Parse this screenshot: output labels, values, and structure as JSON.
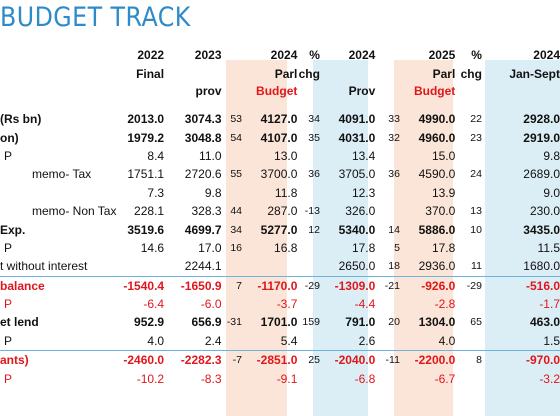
{
  "title": "BUDGET TRACK",
  "colors": {
    "title": "#2e8bc8",
    "red": "#e0161b",
    "peach": "#fbe5d8",
    "blue": "#dbeef6"
  },
  "header": {
    "years": [
      "2022",
      "2023",
      "",
      "2024",
      "%",
      "2024",
      "",
      "2025",
      "%",
      "2024"
    ],
    "line2": [
      "Final",
      "",
      "",
      "Parl",
      "chg",
      "",
      "",
      "Parl",
      "chg",
      "Jan-Sept"
    ],
    "line3": [
      "",
      "prov",
      "",
      "Budget",
      "",
      "Prov",
      "",
      "Budget",
      "",
      ""
    ]
  },
  "rows": [
    {
      "label": "(Rs bn)",
      "vals": [
        "2013.0",
        "3074.3",
        "53",
        "4127.0",
        "34",
        "4091.0",
        "33",
        "4990.0",
        "22",
        "2928.0"
      ]
    },
    {
      "label": "on)",
      "vals": [
        "1979.2",
        "3048.8",
        "54",
        "4107.0",
        "35",
        "4031.0",
        "32",
        "4960.0",
        "23",
        "2919.0"
      ]
    },
    {
      "label": "P",
      "vals": [
        "8.4",
        "11.0",
        "",
        "13.0",
        "",
        "13.4",
        "",
        "15.0",
        "",
        "9.8"
      ]
    },
    {
      "label": "memo- Tax",
      "vals": [
        "1751.1",
        "2720.6",
        "55",
        "3700.0",
        "36",
        "3705.0",
        "36",
        "4590.0",
        "24",
        "2689.0"
      ]
    },
    {
      "label": "",
      "vals": [
        "7.3",
        "9.8",
        "",
        "11.8",
        "",
        "12.3",
        "",
        "13.9",
        "",
        "9.0"
      ]
    },
    {
      "label": "memo- Non Tax",
      "vals": [
        "228.1",
        "328.3",
        "44",
        "287.0",
        "-13",
        "326.0",
        "",
        "370.0",
        "13",
        "230.0"
      ]
    },
    {
      "label": "Exp.",
      "vals": [
        "3519.6",
        "4699.7",
        "34",
        "5277.0",
        "12",
        "5340.0",
        "14",
        "5886.0",
        "10",
        "3435.0"
      ]
    },
    {
      "label": "P",
      "vals": [
        "14.6",
        "17.0",
        "16",
        "16.8",
        "",
        "17.8",
        "5",
        "17.8",
        "",
        "11.5"
      ]
    },
    {
      "label": "t without interest",
      "vals": [
        "",
        "2244.1",
        "",
        "",
        "",
        "2650.0",
        "18",
        "2936.0",
        "11",
        "1680.0"
      ]
    },
    {
      "label": "balance",
      "vals": [
        "-1540.4",
        "-1650.9",
        "7",
        "-1170.0",
        "-29",
        "-1309.0",
        "-21",
        "-926.0",
        "-29",
        "-516.0"
      ]
    },
    {
      "label": "P",
      "vals": [
        "-6.4",
        "-6.0",
        "",
        "-3.7",
        "",
        "-4.4",
        "",
        "-2.8",
        "",
        "-1.7"
      ]
    },
    {
      "label": "et lend",
      "vals": [
        "952.9",
        "656.9",
        "-31",
        "1701.0",
        "159",
        "791.0",
        "20",
        "1304.0",
        "65",
        "463.0"
      ]
    },
    {
      "label": "P",
      "vals": [
        "4.0",
        "2.4",
        "",
        "5.4",
        "",
        "2.6",
        "",
        "4.0",
        "",
        "1.5"
      ]
    },
    {
      "label": "ants)",
      "vals": [
        "-2460.0",
        "-2282.3",
        "-7",
        "-2851.0",
        "25",
        "-2040.0",
        "-11",
        "-2200.0",
        "8",
        "-970.0"
      ]
    },
    {
      "label": "P",
      "vals": [
        "-10.2",
        "-8.3",
        "",
        "-9.1",
        "",
        "-6.8",
        "",
        "-6.7",
        "",
        "-3.2"
      ]
    }
  ]
}
